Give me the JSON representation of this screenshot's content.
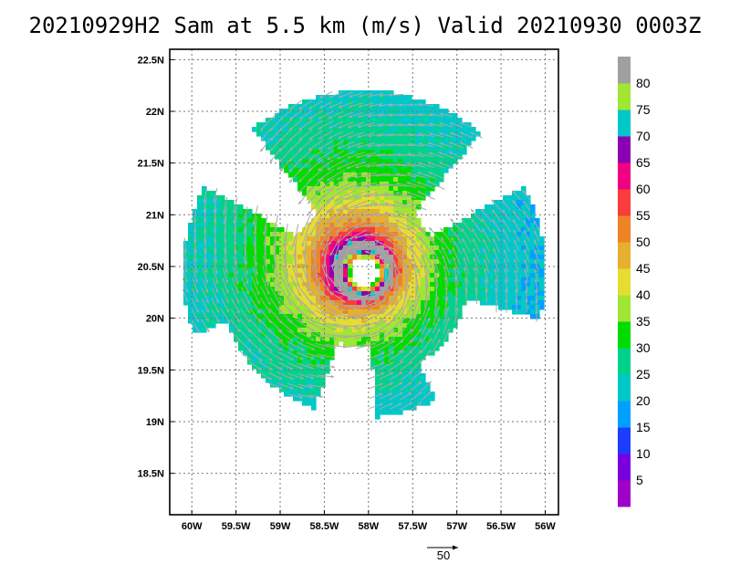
{
  "chart_data": {
    "type": "heatmap",
    "title": "20210929H2 Sam at 5.5 km (m/s) Valid 20210930 0003Z",
    "xlabel": "",
    "ylabel": "",
    "x_ticks": [
      "60W",
      "59.5W",
      "59W",
      "58.5W",
      "58W",
      "57.5W",
      "57W",
      "56.5W",
      "56W"
    ],
    "y_ticks": [
      "22.5N",
      "22N",
      "21.5N",
      "21N",
      "20.5N",
      "20N",
      "19.5N",
      "19N",
      "18.5N"
    ],
    "xlim": [
      -60.25,
      -55.85
    ],
    "ylim": [
      18.1,
      22.6
    ],
    "grid": true,
    "center": {
      "lon": -58.05,
      "lat": 20.45
    },
    "max_wind": 64,
    "reference_vector": {
      "label": "50",
      "value": 50
    },
    "colorbar": {
      "levels": [
        5,
        10,
        15,
        20,
        25,
        30,
        35,
        40,
        45,
        50,
        55,
        60,
        65,
        70,
        75,
        80
      ],
      "labels": [
        "5",
        "10",
        "15",
        "20",
        "25",
        "30",
        "35",
        "40",
        "45",
        "50",
        "55",
        "60",
        "65",
        "70",
        "75",
        "80"
      ],
      "colors": [
        "#a000c8",
        "#7800dc",
        "#1e3cff",
        "#00a0ff",
        "#00c8c8",
        "#00d28c",
        "#00dc00",
        "#a0e632",
        "#e6dc32",
        "#e6af2d",
        "#f08228",
        "#fa3c3c",
        "#f00082",
        "#8c00b4",
        "#00c8c8",
        "#a0e632",
        "#a0a0a0"
      ]
    }
  }
}
